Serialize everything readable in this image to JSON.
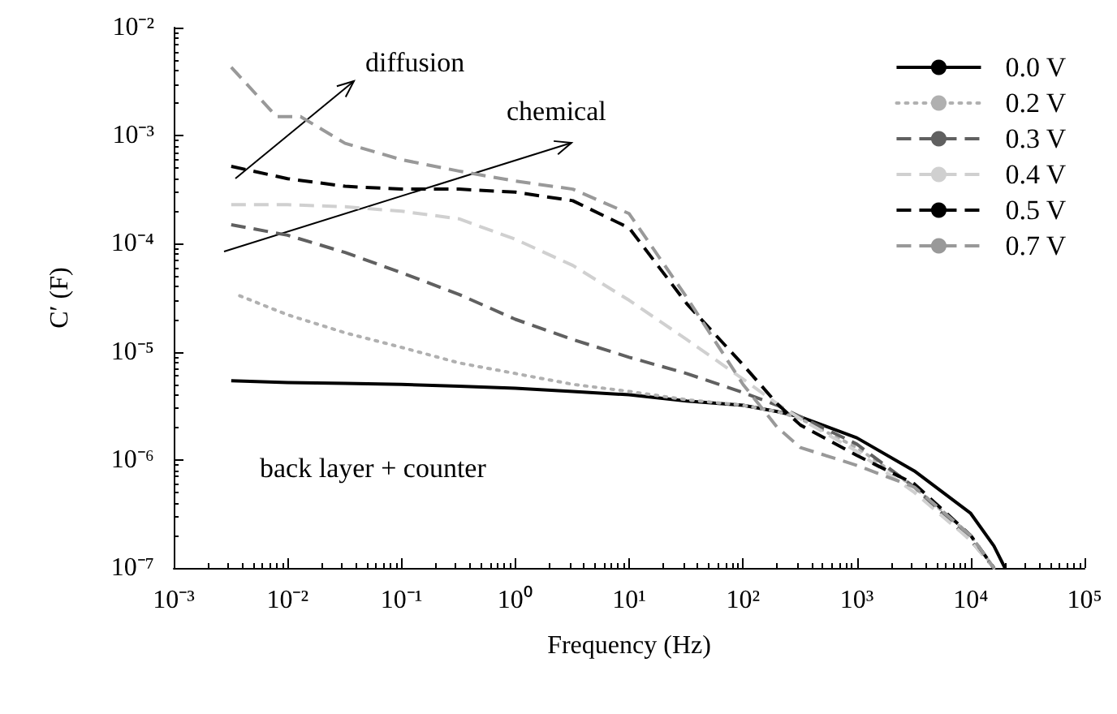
{
  "chart_data": {
    "type": "line",
    "xlabel": "Frequency (Hz)",
    "ylabel": "C′ (F)",
    "log": "xy",
    "grid": false,
    "legend": "top right",
    "marker": "none",
    "xlim": [
      0.001,
      100000
    ],
    "ylim": [
      1e-07,
      0.01
    ],
    "xticks": [
      {
        "value": 0.001,
        "label": "10⁻³"
      },
      {
        "value": 0.01,
        "label": "10⁻²"
      },
      {
        "value": 0.1,
        "label": "10⁻¹"
      },
      {
        "value": 1,
        "label": "10⁰"
      },
      {
        "value": 10,
        "label": "10¹"
      },
      {
        "value": 100,
        "label": "10²"
      },
      {
        "value": 1000,
        "label": "10³"
      },
      {
        "value": 10000,
        "label": "10⁴"
      },
      {
        "value": 100000,
        "label": "10⁵"
      }
    ],
    "yticks": [
      {
        "value": 1e-07,
        "label": "10⁻⁷"
      },
      {
        "value": 1e-06,
        "label": "10⁻⁶"
      },
      {
        "value": 1e-05,
        "label": "10⁻⁵"
      },
      {
        "value": 0.0001,
        "label": "10⁻⁴"
      },
      {
        "value": 0.001,
        "label": "10⁻³"
      },
      {
        "value": 0.01,
        "label": "10⁻²"
      }
    ],
    "x": [
      0.0032,
      0.01,
      0.032,
      0.1,
      0.32,
      1,
      3.2,
      10,
      32,
      100,
      200,
      320,
      1000,
      3200,
      10000,
      16000
    ],
    "series": [
      {
        "name": "0.0 V",
        "color": "#000000",
        "line_style": "solid",
        "x": [
          0.0032,
          0.01,
          0.032,
          0.1,
          0.32,
          1,
          3.2,
          10,
          32,
          100,
          200,
          320,
          1000,
          3200,
          10000,
          16000,
          20000
        ],
        "values": [
          5.4e-06,
          5.2e-06,
          5.1e-06,
          5e-06,
          4.8e-06,
          4.6e-06,
          4.3e-06,
          4e-06,
          3.5e-06,
          3.2e-06,
          2.8e-06,
          2.5e-06,
          1.6e-06,
          7.9e-07,
          3.2e-07,
          1.6e-07,
          1e-07
        ]
      },
      {
        "name": "0.2 V",
        "color": "#b0b0b0",
        "line_style": "dotted",
        "x": [
          0.0038,
          0.01,
          0.032,
          0.1,
          0.32,
          1,
          3.2,
          10,
          32,
          100,
          200,
          320,
          1000,
          3200,
          10000,
          16000
        ],
        "values": [
          3.3e-05,
          2.2e-05,
          1.5e-05,
          1.1e-05,
          7.9e-06,
          6.3e-06,
          5e-06,
          4.3e-06,
          3.6e-06,
          3.2e-06,
          2.8e-06,
          2.4e-06,
          1.3e-06,
          5.6e-07,
          2e-07,
          1e-07
        ]
      },
      {
        "name": "0.3 V",
        "color": "#606060",
        "line_style": "dashed",
        "values": [
          0.00015,
          0.00012,
          8.3e-05,
          5.4e-05,
          3.4e-05,
          2e-05,
          1.3e-05,
          8.9e-06,
          6.3e-06,
          4.2e-06,
          3.2e-06,
          2.5e-06,
          1.4e-06,
          5.6e-07,
          1.8e-07,
          1e-07
        ]
      },
      {
        "name": "0.4 V",
        "color": "#d0d0d0",
        "line_style": "dashed",
        "values": [
          0.00023,
          0.00023,
          0.00022,
          0.0002,
          0.00017,
          0.00011,
          6.3e-05,
          3e-05,
          1.3e-05,
          5.6e-06,
          3.3e-06,
          2.4e-06,
          1.2e-06,
          5e-07,
          1.8e-07,
          1e-07
        ]
      },
      {
        "name": "0.5 V",
        "color": "#000000",
        "line_style": "dashed",
        "values": [
          0.00052,
          0.0004,
          0.00034,
          0.00032,
          0.00032,
          0.0003,
          0.00025,
          0.00014,
          2.8e-05,
          7.6e-06,
          3.3e-06,
          2.1e-06,
          1.1e-06,
          6e-07,
          2e-07,
          1e-07
        ]
      },
      {
        "name": "0.7 V",
        "color": "#999999",
        "line_style": "dashed",
        "x": [
          0.0032,
          0.008,
          0.013,
          0.032,
          0.1,
          0.32,
          1,
          3.2,
          10,
          32,
          100,
          200,
          320,
          1000,
          3200,
          10000,
          16000
        ],
        "values": [
          0.0043,
          0.0015,
          0.0015,
          0.00085,
          0.0006,
          0.00047,
          0.00038,
          0.00032,
          0.00019,
          3.2e-05,
          5e-06,
          2e-06,
          1.3e-06,
          8.9e-07,
          5.6e-07,
          2e-07,
          1e-07
        ]
      }
    ],
    "annotations": [
      "diffusion",
      "chemical",
      "back layer + counter"
    ]
  }
}
